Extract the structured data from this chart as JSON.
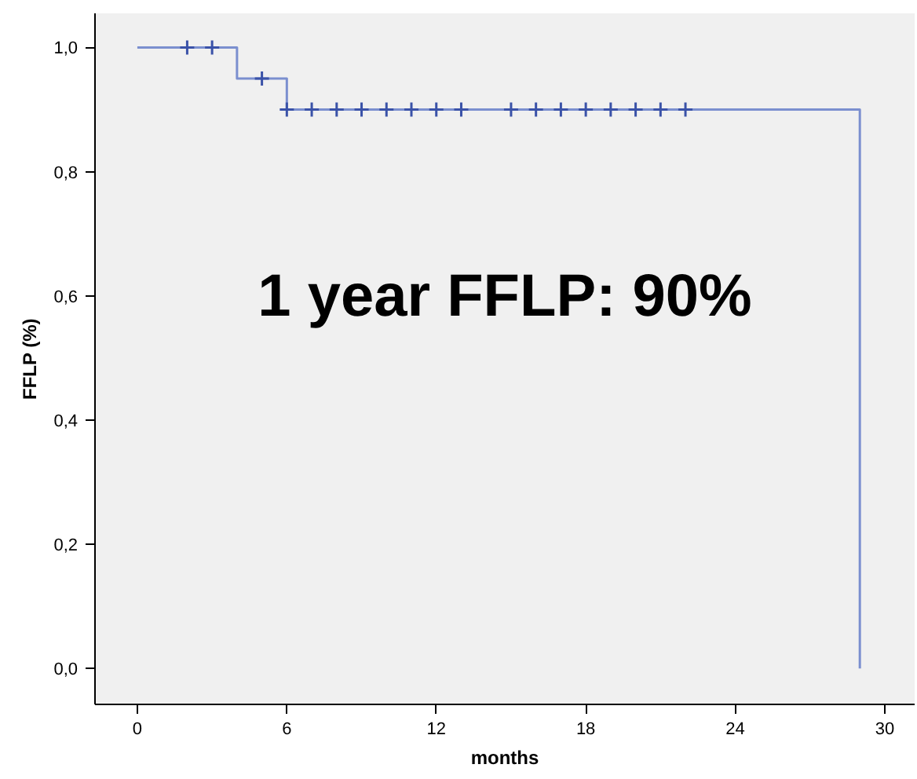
{
  "chart_data": {
    "type": "step",
    "xlabel": "months",
    "ylabel": "FFLP (%)",
    "annotations": [
      "1 year FFLP: 90%"
    ],
    "xlim": [
      -1.7,
      31.2
    ],
    "ylim": [
      -0.058,
      1.055
    ],
    "xticks": [
      0,
      6,
      12,
      18,
      24,
      30
    ],
    "yticks": [
      {
        "value": 0,
        "label": "0,0"
      },
      {
        "value": 0.2,
        "label": "0,2"
      },
      {
        "value": 0.4,
        "label": "0,4"
      },
      {
        "value": 0.6,
        "label": "0,6"
      },
      {
        "value": 0.8,
        "label": "0,8"
      },
      {
        "value": 1,
        "label": "1,0"
      }
    ],
    "grid": false,
    "series": [
      {
        "color": "#7b8fcf",
        "x": [
          0,
          4,
          6,
          29,
          29
        ],
        "values": [
          1,
          0.95,
          0.9,
          0.9,
          0
        ]
      },
      {
        "type": "scatter",
        "color": "#3a52a8",
        "marker": "cross",
        "x": [
          2,
          3,
          5,
          6,
          7,
          8,
          9,
          10,
          11,
          12,
          13,
          15,
          16,
          17,
          18,
          19,
          20,
          21,
          22
        ],
        "values": [
          1,
          1,
          0.95,
          0.9,
          0.9,
          0.9,
          0.9,
          0.9,
          0.9,
          0.9,
          0.9,
          0.9,
          0.9,
          0.9,
          0.9,
          0.9,
          0.9,
          0.9,
          0.9
        ]
      }
    ]
  }
}
